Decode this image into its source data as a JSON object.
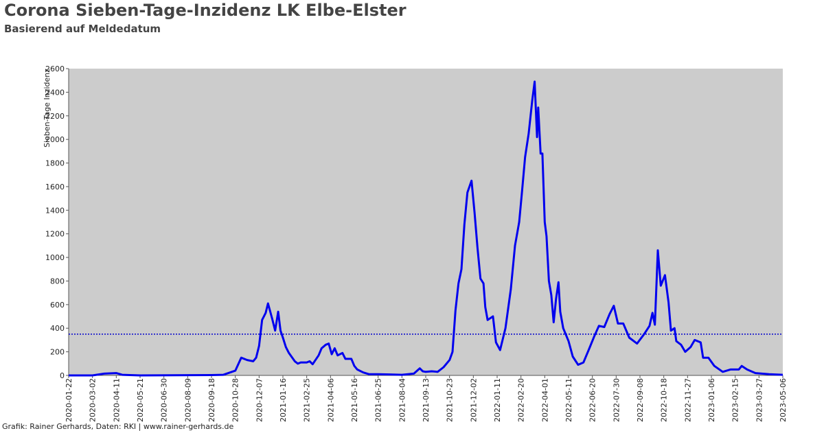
{
  "chart_data": {
    "type": "line",
    "title": "Corona Sieben-Tage-Inzidenz LK Elbe-Elster",
    "subtitle": "Basierend auf Meldedatum",
    "y_label": "Sieben-Tage Inzidenz",
    "footer": "Grafik: Rainer Gerhards, Daten: RKI | www.rainer-gerhards.de",
    "ylim": [
      0,
      2600
    ],
    "yticks": [
      0,
      200,
      400,
      600,
      800,
      1000,
      1200,
      1400,
      1600,
      1800,
      2000,
      2200,
      2400,
      2600
    ],
    "xlim": [
      "2020-01-22",
      "2023-05-06"
    ],
    "xticks": [
      "2020-01-22",
      "2020-03-02",
      "2020-04-11",
      "2020-05-21",
      "2020-06-30",
      "2020-08-09",
      "2020-09-18",
      "2020-10-28",
      "2020-12-07",
      "2021-01-16",
      "2021-02-25",
      "2021-04-06",
      "2021-05-16",
      "2021-06-25",
      "2021-08-04",
      "2021-09-13",
      "2021-10-23",
      "2021-12-02",
      "2022-01-11",
      "2022-02-20",
      "2022-04-01",
      "2022-05-11",
      "2022-06-20",
      "2022-07-30",
      "2022-09-08",
      "2022-10-18",
      "2022-11-27",
      "2023-01-06",
      "2023-02-15",
      "2023-03-27",
      "2023-05-06"
    ],
    "background": "#cccccc",
    "reference_line": 350,
    "series": [
      {
        "name": "Sieben-Tage Inzidenz",
        "color": "#0000ee",
        "x": [
          "2020-01-22",
          "2020-03-02",
          "2020-03-22",
          "2020-04-11",
          "2020-04-21",
          "2020-05-21",
          "2020-09-18",
          "2020-10-08",
          "2020-10-28",
          "2020-11-07",
          "2020-11-17",
          "2020-11-27",
          "2020-12-02",
          "2020-12-07",
          "2020-12-12",
          "2020-12-18",
          "2020-12-22",
          "2020-12-29",
          "2021-01-03",
          "2021-01-08",
          "2021-01-12",
          "2021-01-16",
          "2021-01-21",
          "2021-01-26",
          "2021-02-05",
          "2021-02-10",
          "2021-02-15",
          "2021-02-25",
          "2021-03-02",
          "2021-03-07",
          "2021-03-17",
          "2021-03-22",
          "2021-03-29",
          "2021-04-03",
          "2021-04-08",
          "2021-04-13",
          "2021-04-18",
          "2021-04-26",
          "2021-05-01",
          "2021-05-11",
          "2021-05-16",
          "2021-05-21",
          "2021-05-31",
          "2021-06-10",
          "2021-06-25",
          "2021-07-15",
          "2021-08-04",
          "2021-08-24",
          "2021-09-03",
          "2021-09-08",
          "2021-09-13",
          "2021-09-23",
          "2021-10-03",
          "2021-10-13",
          "2021-10-23",
          "2021-10-28",
          "2021-11-02",
          "2021-11-07",
          "2021-11-12",
          "2021-11-17",
          "2021-11-22",
          "2021-11-29",
          "2021-12-04",
          "2021-12-09",
          "2021-12-14",
          "2021-12-19",
          "2021-12-22",
          "2021-12-26",
          "2022-01-04",
          "2022-01-09",
          "2022-01-16",
          "2022-01-25",
          "2022-02-03",
          "2022-02-10",
          "2022-02-17",
          "2022-02-22",
          "2022-02-27",
          "2022-03-05",
          "2022-03-11",
          "2022-03-15",
          "2022-03-19",
          "2022-03-21",
          "2022-03-25",
          "2022-03-28",
          "2022-04-01",
          "2022-04-04",
          "2022-04-08",
          "2022-04-12",
          "2022-04-16",
          "2022-04-20",
          "2022-04-24",
          "2022-04-27",
          "2022-05-02",
          "2022-05-11",
          "2022-05-18",
          "2022-05-27",
          "2022-06-05",
          "2022-06-15",
          "2022-06-23",
          "2022-07-01",
          "2022-07-10",
          "2022-07-19",
          "2022-07-26",
          "2022-08-02",
          "2022-08-11",
          "2022-08-21",
          "2022-09-03",
          "2022-09-15",
          "2022-09-24",
          "2022-09-29",
          "2022-10-03",
          "2022-10-08",
          "2022-10-13",
          "2022-10-20",
          "2022-10-26",
          "2022-10-30",
          "2022-11-05",
          "2022-11-08",
          "2022-11-16",
          "2022-11-23",
          "2022-12-02",
          "2022-12-09",
          "2022-12-19",
          "2022-12-23",
          "2023-01-01",
          "2023-01-11",
          "2023-01-25",
          "2023-02-07",
          "2023-02-21",
          "2023-02-26",
          "2023-03-07",
          "2023-03-21",
          "2023-04-13",
          "2023-05-06"
        ],
        "values": [
          0,
          0,
          15,
          20,
          5,
          0,
          3,
          5,
          40,
          150,
          130,
          120,
          150,
          250,
          470,
          530,
          610,
          480,
          380,
          540,
          380,
          320,
          240,
          190,
          120,
          100,
          110,
          110,
          120,
          95,
          170,
          230,
          260,
          270,
          180,
          230,
          170,
          190,
          140,
          140,
          80,
          50,
          25,
          10,
          10,
          8,
          5,
          15,
          60,
          35,
          30,
          35,
          30,
          70,
          130,
          200,
          550,
          780,
          900,
          1280,
          1550,
          1650,
          1380,
          1080,
          820,
          780,
          580,
          470,
          500,
          280,
          215,
          400,
          730,
          1100,
          1300,
          1570,
          1850,
          2050,
          2330,
          2490,
          2020,
          2270,
          1880,
          1880,
          1300,
          1180,
          800,
          680,
          450,
          650,
          790,
          540,
          400,
          290,
          160,
          90,
          110,
          230,
          330,
          420,
          410,
          520,
          590,
          440,
          440,
          320,
          270,
          350,
          420,
          530,
          430,
          1060,
          760,
          850,
          620,
          380,
          400,
          290,
          260,
          200,
          240,
          300,
          280,
          150,
          150,
          80,
          30,
          50,
          50,
          80,
          50,
          20,
          10,
          5
        ]
      }
    ]
  }
}
